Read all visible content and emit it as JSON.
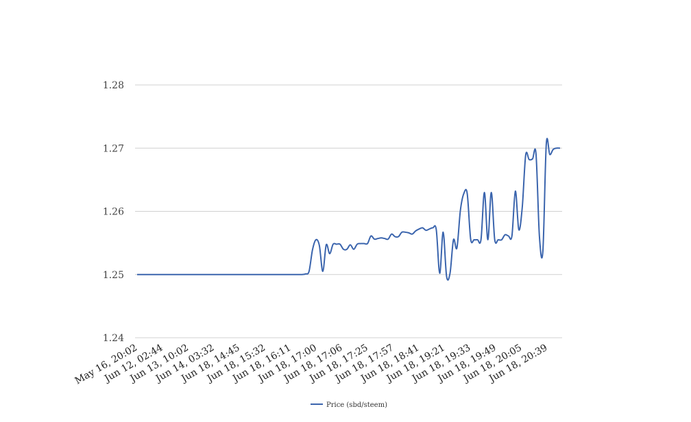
{
  "chart_data": {
    "type": "line",
    "title": "",
    "xlabel": "",
    "ylabel": "",
    "ylim": [
      1.24,
      1.28
    ],
    "yticks": [
      "1.24",
      "1.25",
      "1.26",
      "1.27",
      "1.28"
    ],
    "grid": true,
    "legend_position": "bottom",
    "x_tick_labels": [
      "May 16, 20:02",
      "Jun 12, 02:44",
      "Jun 13, 10:02",
      "Jun 14, 03:32",
      "Jun 18, 14:45",
      "Jun 18, 15:32",
      "Jun 18, 16:11",
      "Jun 18, 17:00",
      "Jun 18, 17:06",
      "Jun 18, 17:25",
      "Jun 18, 17:57",
      "Jun 18, 18:41",
      "Jun 18, 19:21",
      "Jun 18, 19:33",
      "Jun 18, 19:49",
      "Jun 18, 20:05",
      "Jun 18, 20:39"
    ],
    "series": [
      {
        "name": "Price (sbd/steem)",
        "color": "#3a64ad",
        "values": [
          1.25,
          1.25,
          1.25,
          1.25,
          1.25,
          1.25,
          1.25,
          1.25,
          1.25,
          1.25,
          1.25,
          1.25,
          1.25,
          1.25,
          1.25,
          1.25,
          1.25,
          1.25,
          1.25,
          1.25,
          1.25,
          1.25,
          1.25,
          1.25,
          1.25,
          1.25,
          1.25,
          1.25,
          1.25,
          1.25,
          1.25,
          1.25,
          1.25,
          1.25,
          1.25,
          1.25,
          1.25,
          1.25,
          1.25,
          1.25,
          1.25,
          1.25,
          1.25,
          1.25,
          1.25,
          1.25,
          1.25,
          1.25,
          1.25,
          1.2501,
          1.2505,
          1.2539,
          1.2555,
          1.2546,
          1.2505,
          1.2547,
          1.2533,
          1.2548,
          1.2548,
          1.2548,
          1.254,
          1.254,
          1.2547,
          1.254,
          1.2548,
          1.2549,
          1.2549,
          1.2549,
          1.2561,
          1.2556,
          1.2557,
          1.2558,
          1.2557,
          1.2556,
          1.2564,
          1.256,
          1.256,
          1.2567,
          1.2567,
          1.2566,
          1.2564,
          1.2569,
          1.2572,
          1.2574,
          1.257,
          1.2572,
          1.2574,
          1.2571,
          1.2502,
          1.2567,
          1.2497,
          1.2502,
          1.2555,
          1.2542,
          1.2601,
          1.2628,
          1.2628,
          1.2556,
          1.2555,
          1.2555,
          1.2555,
          1.263,
          1.2555,
          1.263,
          1.2555,
          1.2555,
          1.2555,
          1.2563,
          1.2561,
          1.2561,
          1.2632,
          1.2571,
          1.2606,
          1.2689,
          1.2682,
          1.2683,
          1.2691,
          1.256,
          1.2537,
          1.2707,
          1.269,
          1.2698,
          1.27,
          1.27
        ]
      }
    ]
  }
}
